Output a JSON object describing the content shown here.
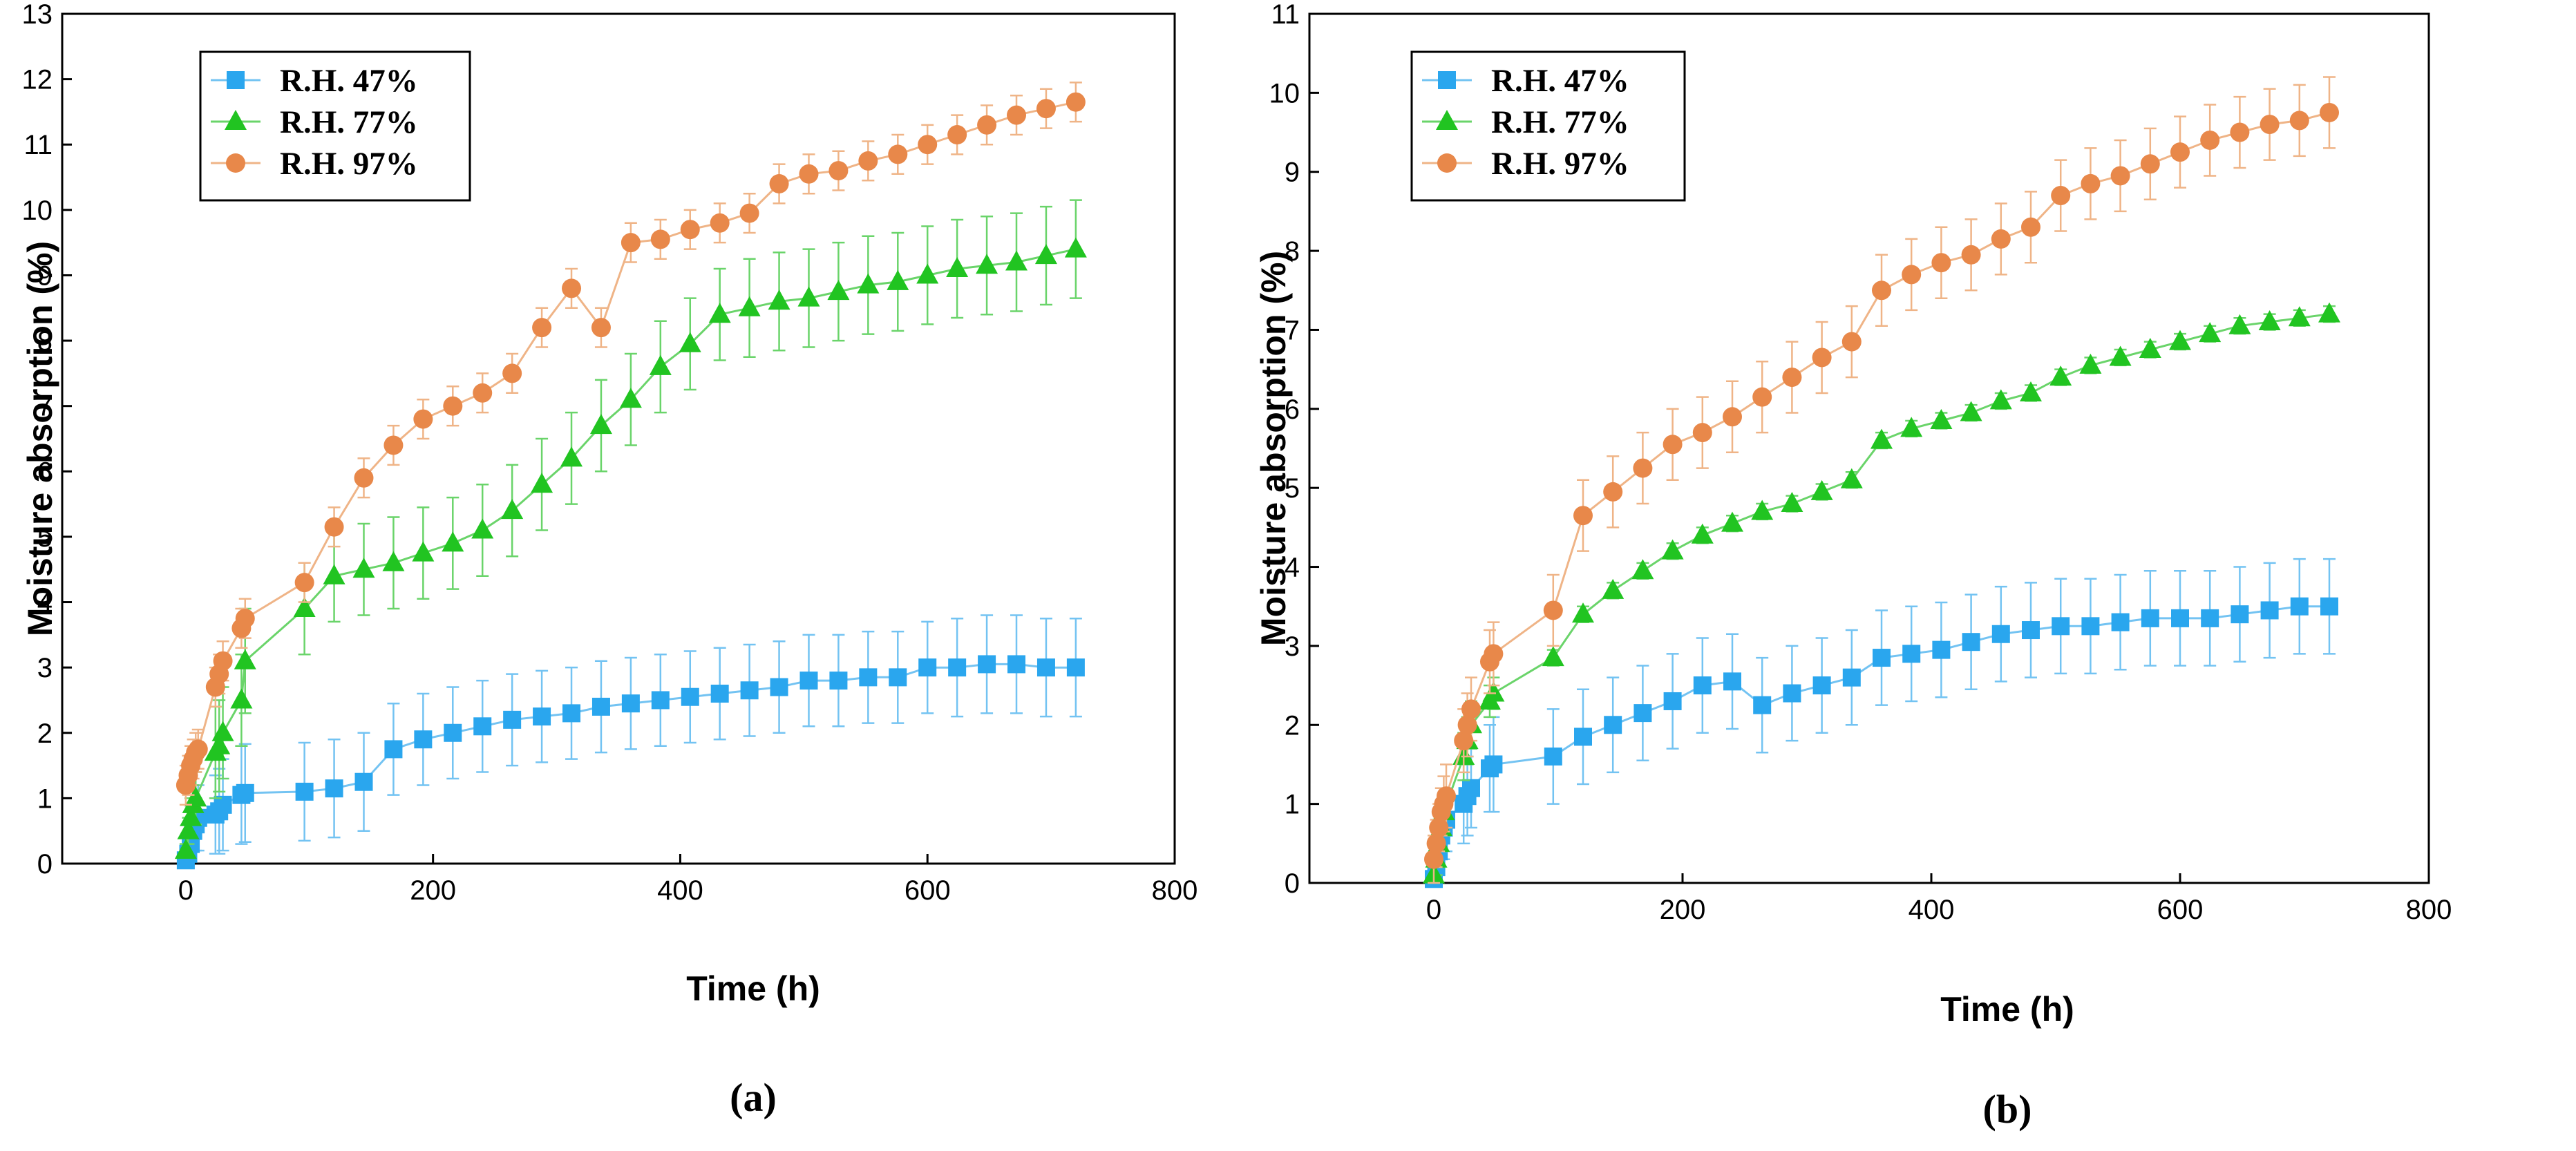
{
  "colors": {
    "rh47": "#2aa6ee",
    "rh77": "#21c421",
    "rh97": "#e8884a",
    "rh47_err": "#73c3f2",
    "rh77_err": "#6ad46a",
    "rh97_err": "#efb487"
  },
  "chart_data": [
    {
      "type": "line",
      "caption": "(a)",
      "xlabel": "Time (h)",
      "ylabel": "Moisture absorption (%)",
      "xlim": [
        -100,
        800
      ],
      "ylim": [
        0,
        13
      ],
      "xticks": [
        0,
        200,
        400,
        600,
        800
      ],
      "yticks": [
        0,
        1,
        2,
        3,
        4,
        5,
        6,
        7,
        8,
        9,
        10,
        11,
        12,
        13
      ],
      "legend_position": "top-left",
      "series": [
        {
          "name": "R.H. 47%",
          "marker": "square",
          "color_key": "rh47",
          "x": [
            0,
            2,
            4,
            6,
            8,
            10,
            24,
            27,
            30,
            45,
            48,
            96,
            120,
            144,
            168,
            192,
            216,
            240,
            264,
            288,
            312,
            336,
            360,
            384,
            408,
            432,
            456,
            480,
            504,
            528,
            552,
            576,
            600,
            624,
            648,
            672,
            696,
            720
          ],
          "y": [
            0.05,
            0.15,
            0.3,
            0.5,
            0.6,
            0.7,
            0.75,
            0.8,
            0.9,
            1.05,
            1.08,
            1.1,
            1.15,
            1.25,
            1.75,
            1.9,
            2.0,
            2.1,
            2.2,
            2.25,
            2.3,
            2.4,
            2.45,
            2.5,
            2.55,
            2.6,
            2.65,
            2.7,
            2.8,
            2.8,
            2.85,
            2.85,
            3.0,
            3.0,
            3.05,
            3.05,
            3.0,
            3.0
          ],
          "err": [
            0.05,
            0.1,
            0.2,
            0.3,
            0.4,
            0.5,
            0.6,
            0.65,
            0.7,
            0.75,
            0.75,
            0.75,
            0.75,
            0.75,
            0.7,
            0.7,
            0.7,
            0.7,
            0.7,
            0.7,
            0.7,
            0.7,
            0.7,
            0.7,
            0.7,
            0.7,
            0.7,
            0.7,
            0.7,
            0.7,
            0.7,
            0.7,
            0.7,
            0.75,
            0.75,
            0.75,
            0.75,
            0.75
          ]
        },
        {
          "name": "R.H. 77%",
          "marker": "triangle",
          "color_key": "rh77",
          "x": [
            0,
            2,
            4,
            6,
            8,
            24,
            27,
            30,
            45,
            48,
            96,
            120,
            144,
            168,
            192,
            216,
            240,
            264,
            288,
            312,
            336,
            360,
            384,
            408,
            432,
            456,
            480,
            504,
            528,
            552,
            576,
            600,
            624,
            648,
            672,
            696,
            720
          ],
          "y": [
            0.2,
            0.5,
            0.7,
            0.9,
            1.0,
            1.7,
            1.8,
            2.0,
            2.5,
            3.1,
            3.9,
            4.4,
            4.5,
            4.6,
            4.75,
            4.9,
            5.1,
            5.4,
            5.8,
            6.2,
            6.7,
            7.1,
            7.6,
            7.95,
            8.4,
            8.5,
            8.6,
            8.65,
            8.75,
            8.85,
            8.9,
            9.0,
            9.1,
            9.15,
            9.2,
            9.3,
            9.4
          ],
          "err": [
            0.1,
            0.2,
            0.3,
            0.3,
            0.4,
            0.7,
            0.7,
            0.7,
            0.7,
            0.8,
            0.7,
            0.7,
            0.7,
            0.7,
            0.7,
            0.7,
            0.7,
            0.7,
            0.7,
            0.7,
            0.7,
            0.7,
            0.7,
            0.7,
            0.7,
            0.75,
            0.75,
            0.75,
            0.75,
            0.75,
            0.75,
            0.75,
            0.75,
            0.75,
            0.75,
            0.75,
            0.75
          ]
        },
        {
          "name": "R.H. 97%",
          "marker": "circle",
          "color_key": "rh97",
          "x": [
            0,
            2,
            4,
            6,
            8,
            10,
            24,
            27,
            30,
            45,
            48,
            96,
            120,
            144,
            168,
            192,
            216,
            240,
            264,
            288,
            312,
            336,
            360,
            384,
            408,
            432,
            456,
            480,
            504,
            528,
            552,
            576,
            600,
            624,
            648,
            672,
            696,
            720
          ],
          "y": [
            1.2,
            1.35,
            1.5,
            1.6,
            1.7,
            1.75,
            2.7,
            2.9,
            3.1,
            3.6,
            3.75,
            4.3,
            5.15,
            5.9,
            6.4,
            6.8,
            7.0,
            7.2,
            7.5,
            8.2,
            8.8,
            8.2,
            9.5,
            9.55,
            9.7,
            9.8,
            9.95,
            10.4,
            10.55,
            10.6,
            10.75,
            10.85,
            11.0,
            11.15,
            11.3,
            11.45,
            11.55,
            11.65
          ],
          "err": [
            0.3,
            0.3,
            0.3,
            0.3,
            0.3,
            0.3,
            0.3,
            0.3,
            0.3,
            0.3,
            0.3,
            0.3,
            0.3,
            0.3,
            0.3,
            0.3,
            0.3,
            0.3,
            0.3,
            0.3,
            0.3,
            0.3,
            0.3,
            0.3,
            0.3,
            0.3,
            0.3,
            0.3,
            0.3,
            0.3,
            0.3,
            0.3,
            0.3,
            0.3,
            0.3,
            0.3,
            0.3,
            0.3
          ]
        }
      ]
    },
    {
      "type": "line",
      "caption": "(b)",
      "xlabel": "Time (h)",
      "ylabel": "Moisture absorption (%)",
      "xlim": [
        -100,
        800
      ],
      "ylim": [
        0,
        11
      ],
      "xticks": [
        0,
        200,
        400,
        600,
        800
      ],
      "yticks": [
        0,
        1,
        2,
        3,
        4,
        5,
        6,
        7,
        8,
        9,
        10,
        11
      ],
      "legend_position": "top-left",
      "series": [
        {
          "name": "R.H. 47%",
          "marker": "square",
          "color_key": "rh47",
          "x": [
            0,
            2,
            4,
            6,
            8,
            10,
            24,
            27,
            30,
            45,
            48,
            96,
            120,
            144,
            168,
            192,
            216,
            240,
            264,
            288,
            312,
            336,
            360,
            384,
            408,
            432,
            456,
            480,
            504,
            528,
            552,
            576,
            600,
            624,
            648,
            672,
            696,
            720
          ],
          "y": [
            0.05,
            0.2,
            0.4,
            0.6,
            0.7,
            0.8,
            1.0,
            1.1,
            1.2,
            1.45,
            1.5,
            1.6,
            1.85,
            2.0,
            2.15,
            2.3,
            2.5,
            2.55,
            2.25,
            2.4,
            2.5,
            2.6,
            2.85,
            2.9,
            2.95,
            3.05,
            3.15,
            3.2,
            3.25,
            3.25,
            3.3,
            3.35,
            3.35,
            3.35,
            3.4,
            3.45,
            3.5,
            3.5
          ],
          "err": [
            0.05,
            0.1,
            0.2,
            0.3,
            0.4,
            0.4,
            0.5,
            0.5,
            0.5,
            0.55,
            0.6,
            0.6,
            0.6,
            0.6,
            0.6,
            0.6,
            0.6,
            0.6,
            0.6,
            0.6,
            0.6,
            0.6,
            0.6,
            0.6,
            0.6,
            0.6,
            0.6,
            0.6,
            0.6,
            0.6,
            0.6,
            0.6,
            0.6,
            0.6,
            0.6,
            0.6,
            0.6,
            0.6
          ]
        },
        {
          "name": "R.H. 77%",
          "marker": "triangle",
          "color_key": "rh77",
          "x": [
            0,
            2,
            4,
            6,
            8,
            24,
            27,
            30,
            45,
            48,
            96,
            120,
            144,
            168,
            192,
            216,
            240,
            264,
            288,
            312,
            336,
            360,
            384,
            408,
            432,
            456,
            480,
            504,
            528,
            552,
            576,
            600,
            624,
            648,
            672,
            696,
            720
          ],
          "y": [
            0.1,
            0.3,
            0.5,
            0.7,
            0.9,
            1.6,
            1.8,
            2.0,
            2.3,
            2.4,
            2.85,
            3.4,
            3.7,
            3.95,
            4.2,
            4.4,
            4.55,
            4.7,
            4.8,
            4.95,
            5.1,
            5.6,
            5.75,
            5.85,
            5.95,
            6.1,
            6.2,
            6.4,
            6.55,
            6.65,
            6.75,
            6.85,
            6.95,
            7.05,
            7.1,
            7.15,
            7.2
          ],
          "err": [
            0.1,
            0.2,
            0.3,
            0.3,
            0.3,
            0.3,
            0.3,
            0.3,
            0.2,
            0.2,
            0.1,
            0.1,
            0.1,
            0.1,
            0.1,
            0.1,
            0.1,
            0.1,
            0.1,
            0.1,
            0.1,
            0.1,
            0.1,
            0.1,
            0.1,
            0.1,
            0.1,
            0.1,
            0.1,
            0.1,
            0.1,
            0.1,
            0.1,
            0.1,
            0.1,
            0.1,
            0.1
          ]
        },
        {
          "name": "R.H. 97%",
          "marker": "circle",
          "color_key": "rh97",
          "x": [
            0,
            2,
            4,
            6,
            8,
            10,
            24,
            27,
            30,
            45,
            48,
            96,
            120,
            144,
            168,
            192,
            216,
            240,
            264,
            288,
            312,
            336,
            360,
            384,
            408,
            432,
            456,
            480,
            504,
            528,
            552,
            576,
            600,
            624,
            648,
            672,
            696,
            720
          ],
          "y": [
            0.3,
            0.5,
            0.7,
            0.9,
            1.0,
            1.1,
            1.8,
            2.0,
            2.2,
            2.8,
            2.9,
            3.45,
            4.65,
            4.95,
            5.25,
            5.55,
            5.7,
            5.9,
            6.15,
            6.4,
            6.65,
            6.85,
            7.5,
            7.7,
            7.85,
            7.95,
            8.15,
            8.3,
            8.7,
            8.85,
            8.95,
            9.1,
            9.25,
            9.4,
            9.5,
            9.6,
            9.65,
            9.75
          ],
          "err": [
            0.3,
            0.3,
            0.3,
            0.3,
            0.35,
            0.4,
            0.4,
            0.4,
            0.4,
            0.4,
            0.4,
            0.45,
            0.45,
            0.45,
            0.45,
            0.45,
            0.45,
            0.45,
            0.45,
            0.45,
            0.45,
            0.45,
            0.45,
            0.45,
            0.45,
            0.45,
            0.45,
            0.45,
            0.45,
            0.45,
            0.45,
            0.45,
            0.45,
            0.45,
            0.45,
            0.45,
            0.45,
            0.45
          ]
        }
      ]
    }
  ]
}
